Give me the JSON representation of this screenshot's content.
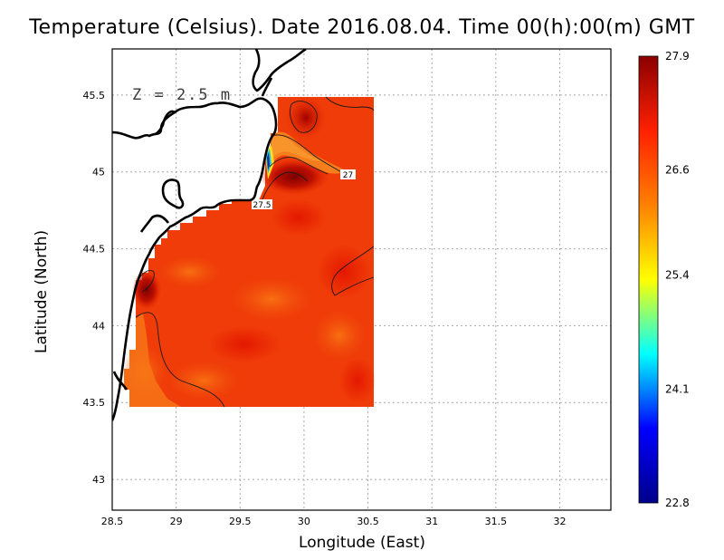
{
  "title": "Temperature (Celsius). Date 2016.08.04. Time 00(h):00(m) GMT",
  "depth_label": "Z = 2.5 m",
  "xlabel": "Longitude (East)",
  "ylabel": "Latitude (North)",
  "colors": {
    "frame": "#000000",
    "grid": "#a0a0a0",
    "coast": "#000000",
    "field_base": "#f03a08"
  },
  "chart_data": {
    "type": "heatmap",
    "x_axis": {
      "label": "Longitude (East)",
      "min": 28.5,
      "max": 32.4,
      "ticks": [
        "28.5",
        "29",
        "29.5",
        "30",
        "30.5",
        "31",
        "31.5",
        "32"
      ]
    },
    "y_axis": {
      "label": "Latitude (North)",
      "min": 42.8,
      "max": 45.8,
      "ticks": [
        "43",
        "43.5",
        "44",
        "44.5",
        "45",
        "45.5"
      ]
    },
    "grid": true,
    "colorbar": {
      "min": 22.8,
      "max": 27.9,
      "ticks": [
        "22.8",
        "24.1",
        "25.4",
        "26.6",
        "27.9"
      ],
      "stops": [
        "#00008b",
        "#0000ff",
        "#00ffff",
        "#ffff00",
        "#ff8000",
        "#ff2000",
        "#8b0000"
      ]
    },
    "contour_labels": [
      {
        "text": "27",
        "lon": 30.33,
        "lat": 45.0
      },
      {
        "text": "27.5",
        "lon": 29.55,
        "lat": 44.79
      }
    ],
    "field": {
      "extent": {
        "lon_min": 28.6,
        "lon_max": 30.55,
        "lat_min": 43.5,
        "lat_max": 45.5
      },
      "typical_value": 27.3,
      "warm_spots": [
        {
          "lon": 29.95,
          "lat": 44.95,
          "value": 27.9
        },
        {
          "lon": 28.7,
          "lat": 44.3,
          "value": 27.8
        },
        {
          "lon": 30.0,
          "lat": 45.35,
          "value": 27.7
        }
      ],
      "cool_spots": [
        {
          "lon": 29.7,
          "lat": 45.0,
          "value": 24.5
        },
        {
          "lon": 30.1,
          "lat": 45.1,
          "value": 26.9
        },
        {
          "lon": 28.75,
          "lat": 43.8,
          "value": 26.9
        }
      ]
    }
  }
}
